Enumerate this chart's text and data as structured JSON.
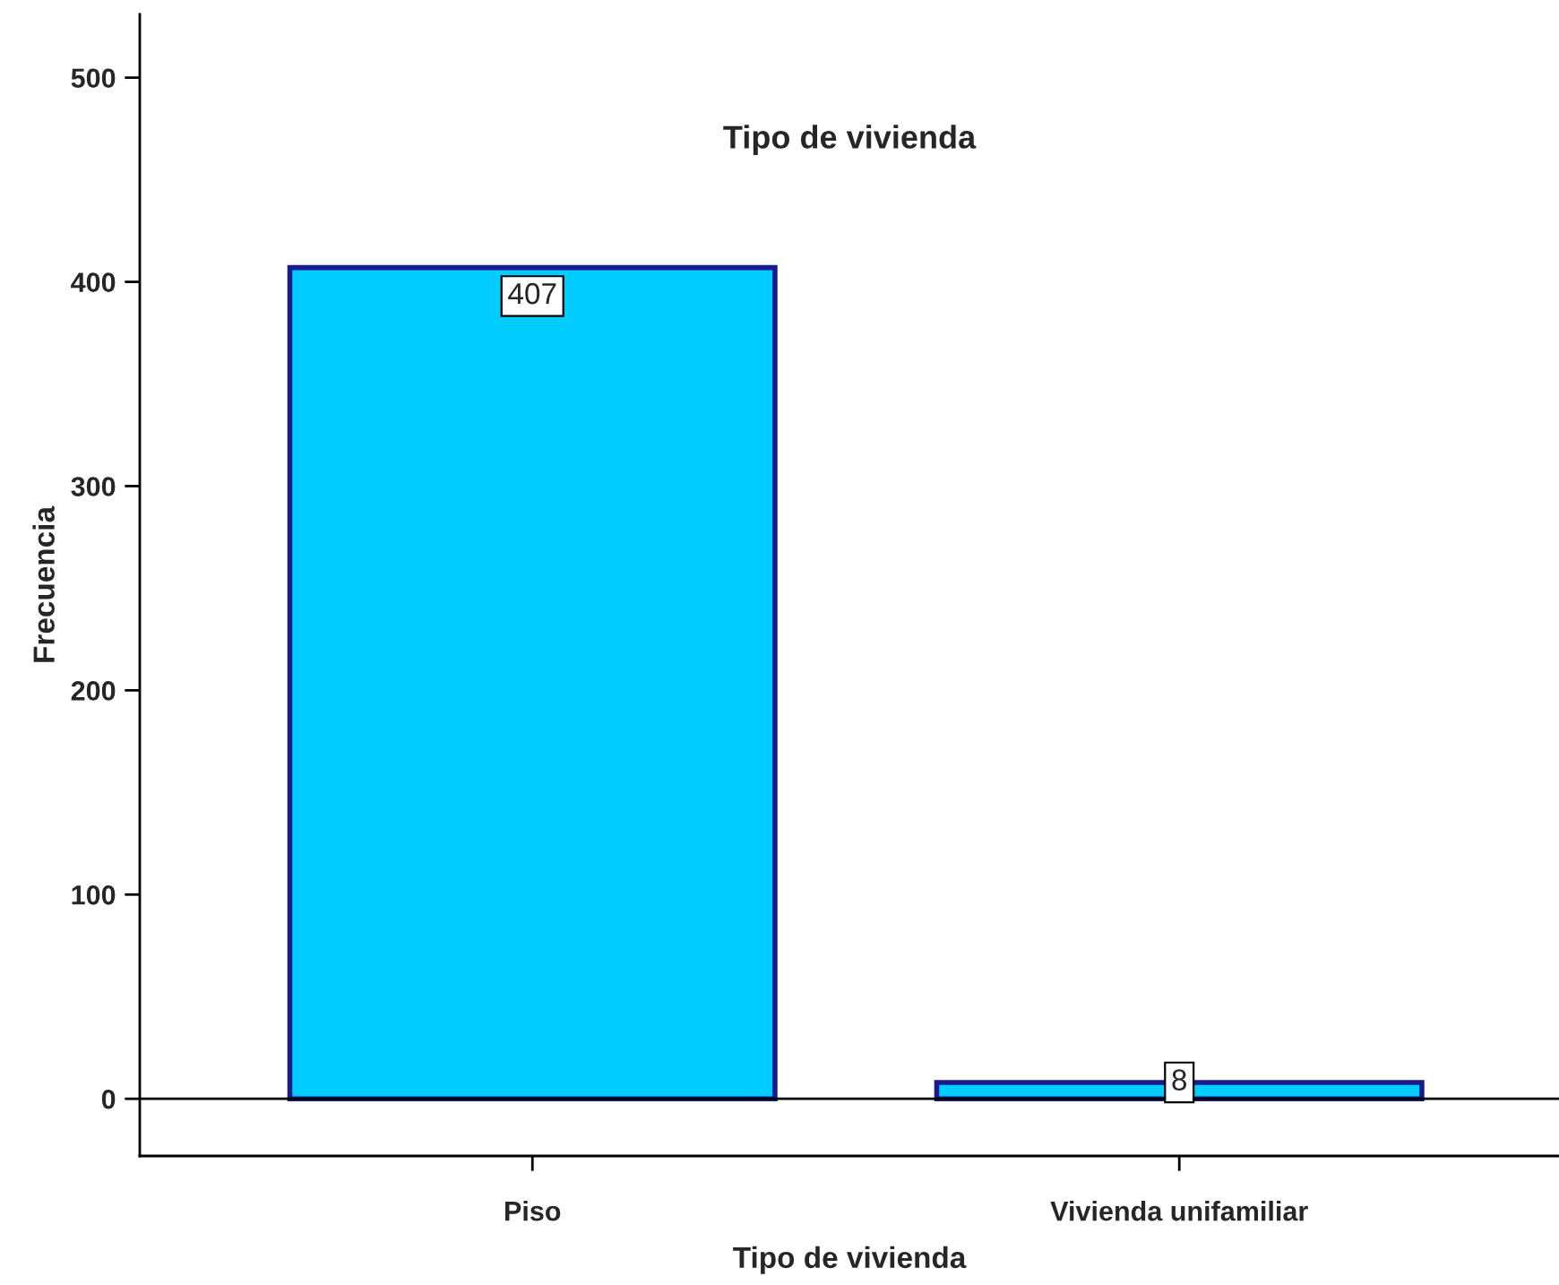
{
  "chart_data": {
    "type": "bar",
    "title": "Tipo de vivienda",
    "xlabel": "Tipo de vivienda",
    "ylabel": "Frecuencia",
    "categories": [
      "Piso",
      "Vivienda unifamiliar"
    ],
    "values": [
      407,
      8
    ],
    "color": "#00ccff",
    "ylim": [
      -28,
      531
    ],
    "yticks": [
      0,
      100,
      200,
      300,
      400,
      500
    ],
    "ref_lines": [
      {
        "axis": "y",
        "value": 0,
        "label": null,
        "color": "#000000"
      }
    ],
    "data_labels": true,
    "grid": false,
    "legend": false
  }
}
